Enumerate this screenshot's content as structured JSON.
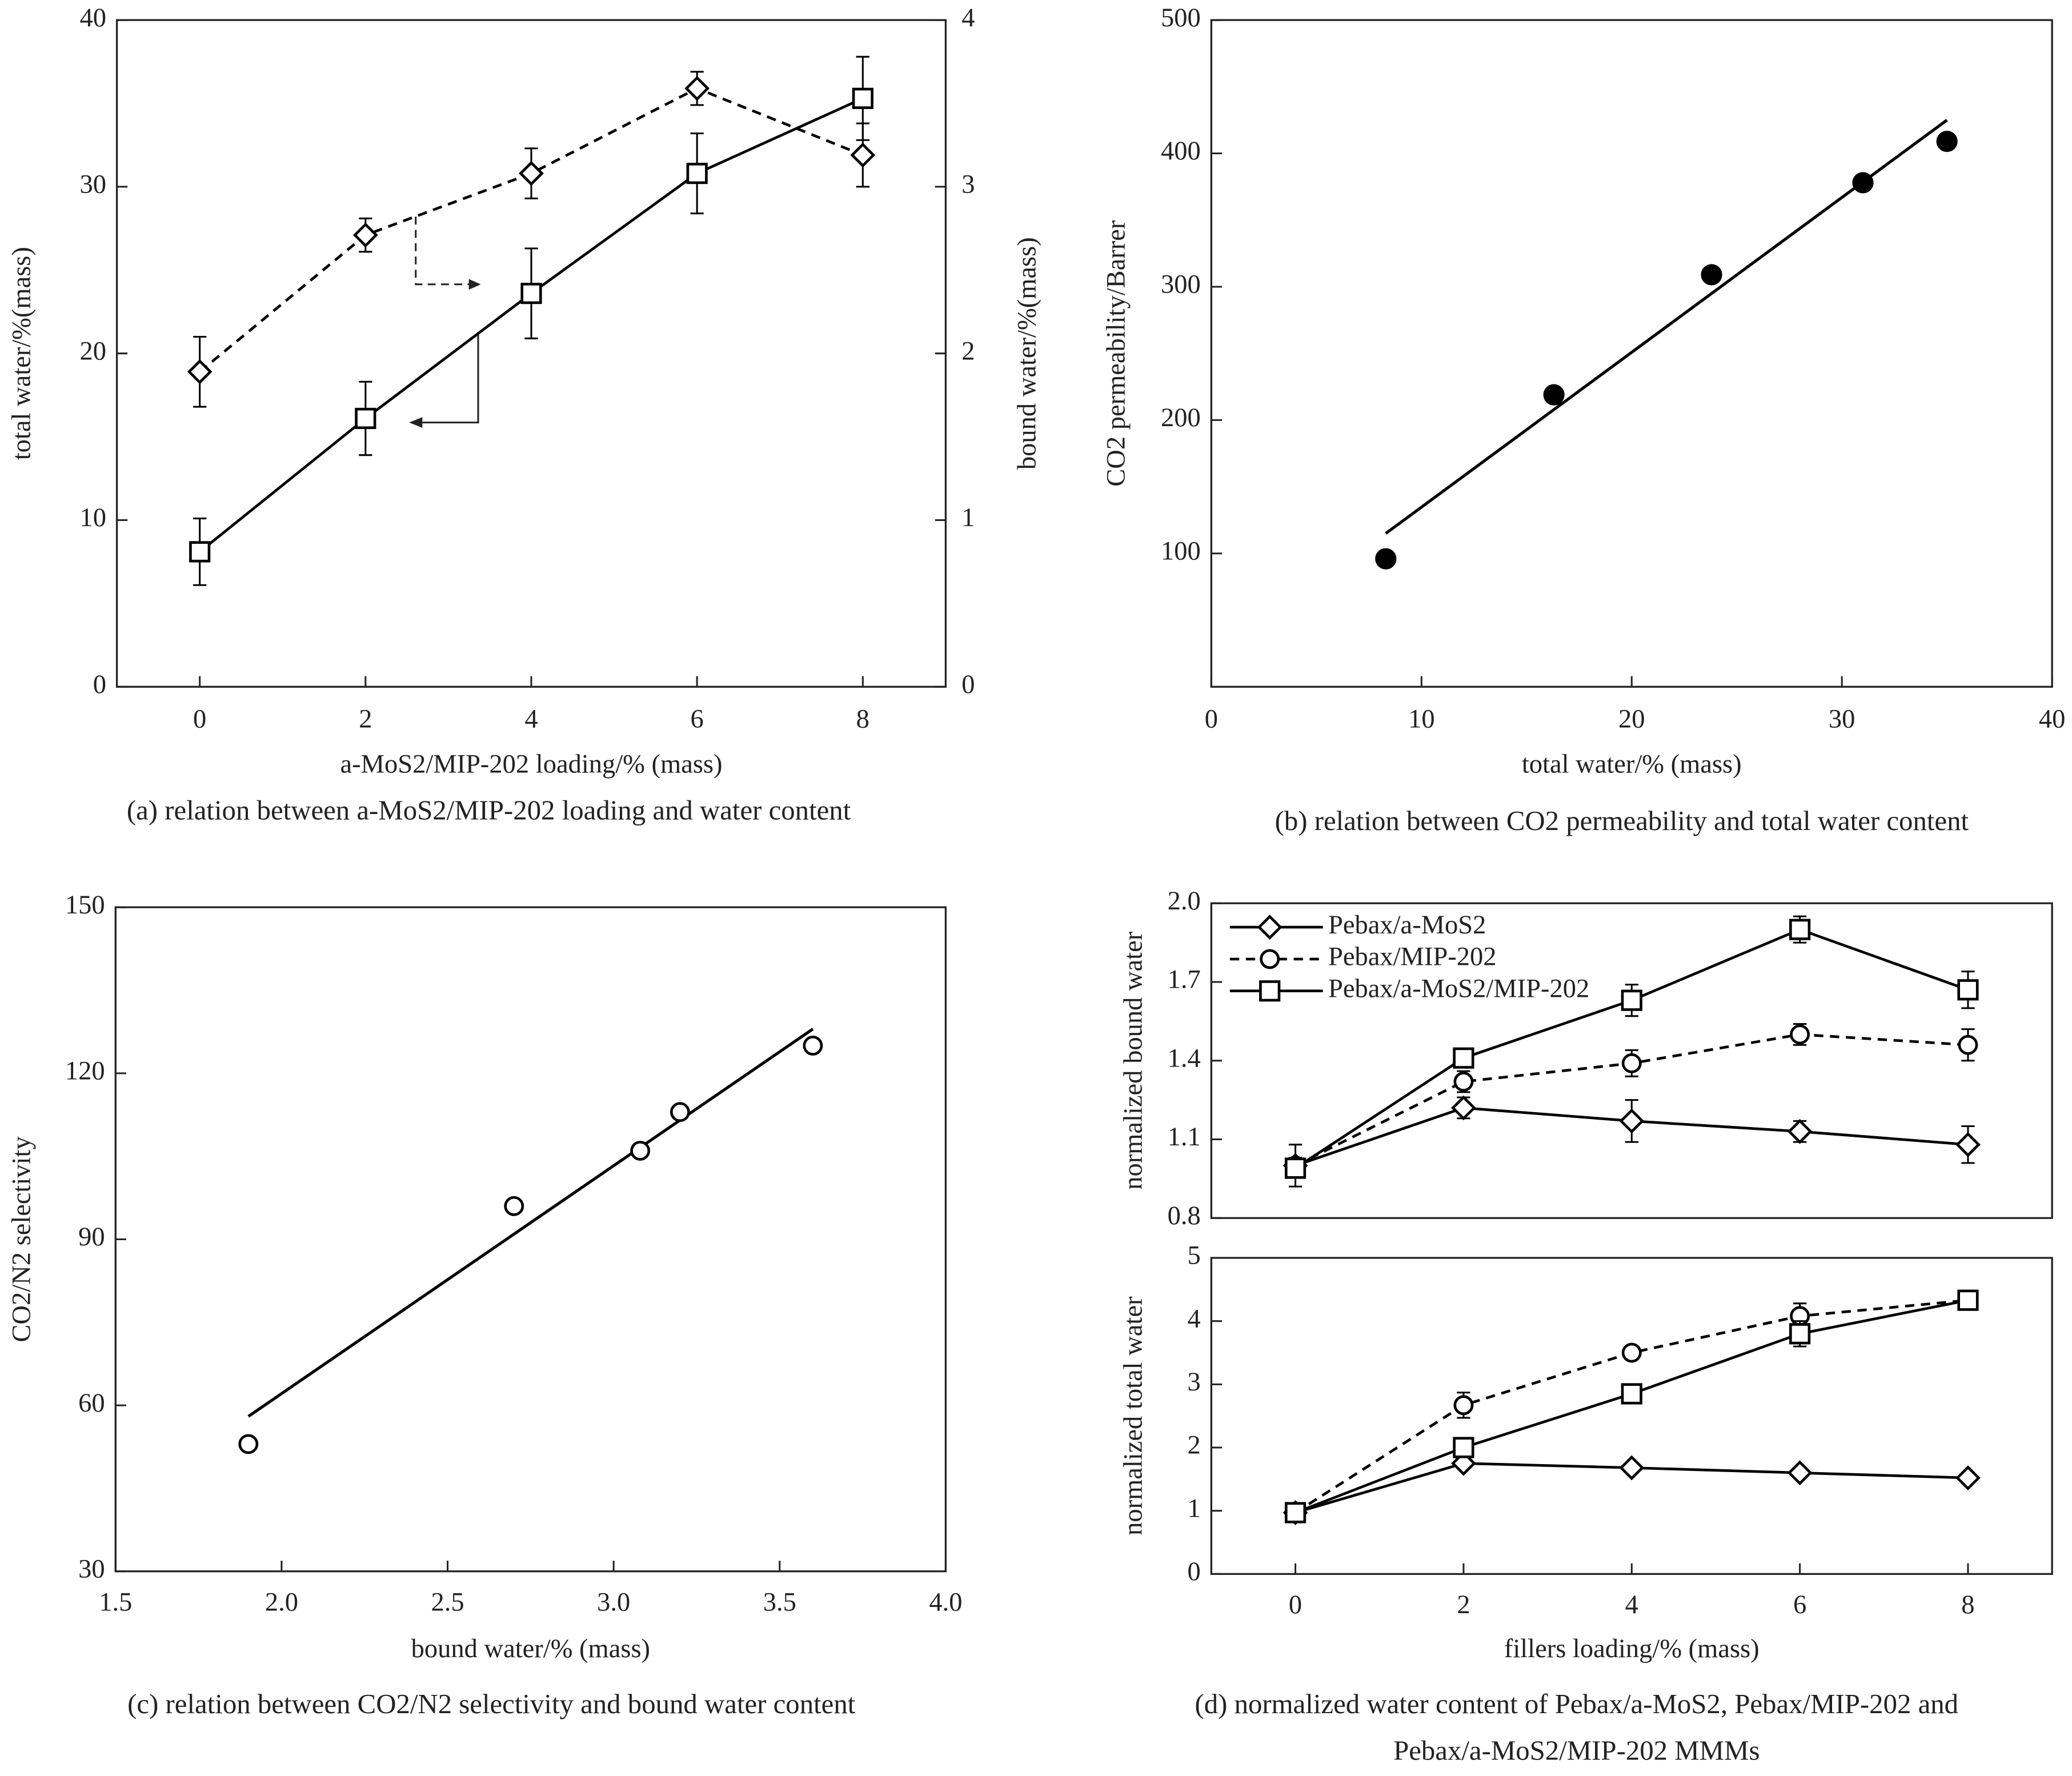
{
  "chart_data": [
    {
      "type": "line",
      "caption": "(a) relation between a-MoS2/MIP-202 loading and water content",
      "x_label": "a-MoS2/MIP-202 loading/% (mass)",
      "y_label": "total water/%(mass)",
      "y2_label": "bound water/%(mass)",
      "x": [
        0,
        2,
        4,
        6,
        8
      ],
      "xlim": [
        -1,
        9
      ],
      "xticks": [
        0,
        2,
        4,
        6,
        8
      ],
      "ylim": [
        0,
        40
      ],
      "yticks": [
        0,
        10,
        20,
        30,
        40
      ],
      "y2lim": [
        0,
        4
      ],
      "y2ticks": [
        0,
        1,
        2,
        3,
        4
      ],
      "series": [
        {
          "color": "#000000",
          "marker": "square",
          "linestyle": "solid",
          "values": [
            8.1,
            16.1,
            23.6,
            30.8,
            35.3
          ],
          "errors": [
            2.0,
            2.2,
            2.7,
            2.4,
            2.5
          ]
        },
        {
          "color": "#000000",
          "marker": "diamond",
          "linestyle": "dashed",
          "axis": "y2",
          "values": [
            1.89,
            2.71,
            3.08,
            3.59,
            3.19
          ],
          "errors": [
            0.21,
            0.1,
            0.15,
            0.1,
            0.19
          ]
        }
      ]
    },
    {
      "type": "scatter",
      "caption": "(b) relation between CO2 permeability and total water content",
      "x_label": "total water/% (mass)",
      "y_label": "CO2 permeability/Barrer",
      "xlim": [
        0,
        40
      ],
      "xticks": [
        0,
        10,
        20,
        30,
        40
      ],
      "ylim": [
        0,
        500
      ],
      "yticks": [
        100,
        200,
        300,
        400,
        500
      ],
      "color": "#000000",
      "marker": "filled-circle",
      "x": [
        8.3,
        16.3,
        23.8,
        31.0,
        35.0
      ],
      "values": [
        96,
        219,
        309,
        378,
        409
      ],
      "fit_line": {
        "x": [
          8.3,
          35.0
        ],
        "y": [
          115,
          425
        ]
      }
    },
    {
      "type": "scatter",
      "caption": "(c) relation between CO2/N2 selectivity and bound water content",
      "x_label": "bound water/% (mass)",
      "y_label": "CO2/N2 selectivity",
      "xlim": [
        1.5,
        4.0
      ],
      "xticks": [
        1.5,
        {
          "value": 2,
          "label": "2.0"
        },
        2.5,
        {
          "value": 3,
          "label": "3.0"
        },
        3.5,
        {
          "value": 4,
          "label": "4.0"
        }
      ],
      "ylim": [
        30,
        150
      ],
      "yticks": [
        30,
        60,
        90,
        120,
        150
      ],
      "color": "#000000",
      "marker": "circle",
      "x": [
        1.9,
        2.7,
        3.08,
        3.2,
        3.6
      ],
      "values": [
        53,
        96,
        106,
        113,
        125
      ],
      "fit_line": {
        "x": [
          1.9,
          3.6
        ],
        "y": [
          58,
          128
        ]
      }
    },
    {
      "type": "line",
      "y_label": "normalized bound water",
      "legend": "upper left",
      "x": [
        0,
        2,
        4,
        6,
        8
      ],
      "xlim": [
        -1,
        9
      ],
      "ylim": [
        0.8,
        2.0
      ],
      "yticks": [
        0.8,
        1.1,
        1.4,
        1.7,
        {
          "value": 2,
          "label": "2.0"
        }
      ],
      "series": [
        {
          "name": "Pebax/a-MoS2",
          "color": "#000000",
          "marker": "diamond",
          "linestyle": "solid",
          "values": [
            1.0,
            1.22,
            1.17,
            1.13,
            1.08
          ],
          "errors": [
            0.08,
            0.04,
            0.08,
            0.04,
            0.07
          ]
        },
        {
          "name": "Pebax/MIP-202",
          "color": "#000000",
          "marker": "circle",
          "linestyle": "dashed",
          "values": [
            1.0,
            1.32,
            1.39,
            1.5,
            1.46
          ],
          "errors": [
            0.03,
            0.04,
            0.05,
            0.04,
            0.06
          ]
        },
        {
          "name": "Pebax/a-MoS2/MIP-202",
          "color": "#000000",
          "marker": "square",
          "linestyle": "solid",
          "values": [
            0.99,
            1.41,
            1.63,
            1.9,
            1.67
          ],
          "errors": [
            0.03,
            0.03,
            0.06,
            0.05,
            0.07
          ]
        }
      ]
    },
    {
      "type": "line",
      "caption": [
        "(d) normalized water content of Pebax/a-MoS2, Pebax/MIP-202 and",
        "Pebax/a-MoS2/MIP-202 MMMs"
      ],
      "x_label": "fillers loading/% (mass)",
      "y_label": "normalized total water",
      "x": [
        0,
        2,
        4,
        6,
        8
      ],
      "xlim": [
        -1,
        9
      ],
      "xticks": [
        0,
        2,
        4,
        6,
        8
      ],
      "ylim": [
        0,
        5
      ],
      "yticks": [
        0,
        1,
        2,
        3,
        4,
        5
      ],
      "series": [
        {
          "color": "#000000",
          "marker": "diamond",
          "linestyle": "solid",
          "values": [
            0.97,
            1.75,
            1.68,
            1.6,
            1.52
          ],
          "errors": [
            0.08,
            0.08,
            0.08,
            0.08,
            0.08
          ]
        },
        {
          "color": "#000000",
          "marker": "circle",
          "linestyle": "dashed",
          "values": [
            0.97,
            2.67,
            3.5,
            4.08,
            4.33
          ],
          "errors": [
            0.08,
            0.2,
            0.1,
            0.2,
            0.12
          ]
        },
        {
          "color": "#000000",
          "marker": "square",
          "linestyle": "solid",
          "values": [
            0.97,
            2.0,
            2.85,
            3.8,
            4.33
          ],
          "errors": [
            0.08,
            0.1,
            0.15,
            0.2,
            0.12
          ]
        }
      ]
    }
  ]
}
